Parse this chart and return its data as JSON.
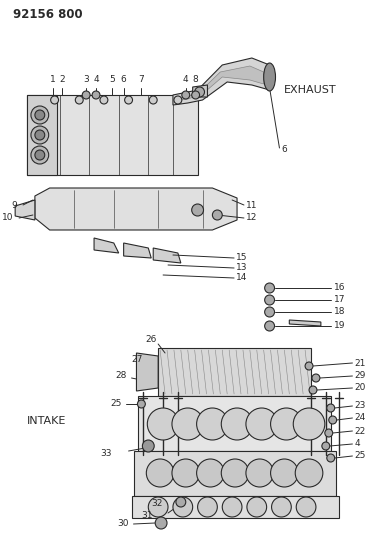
{
  "title": "92156 800",
  "exhaust_label": "EXHAUST",
  "intake_label": "INTAKE",
  "bg_color": "#ffffff",
  "line_color": "#2a2a2a",
  "text_color": "#2a2a2a",
  "title_fontsize": 8.5,
  "label_fontsize": 8,
  "part_fontsize": 6.5
}
